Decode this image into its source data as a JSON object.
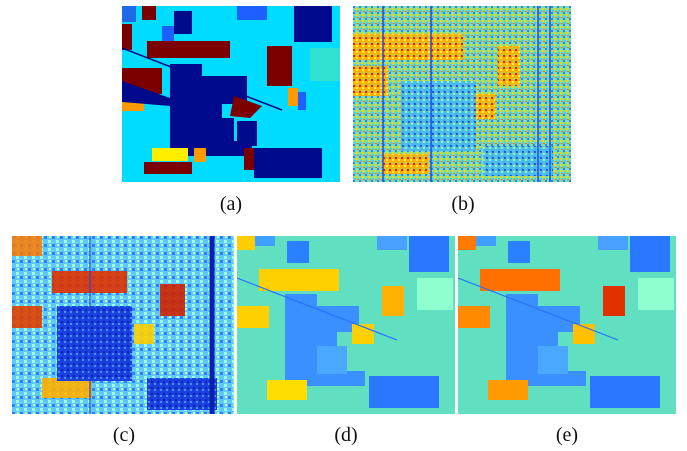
{
  "figure": {
    "panels": [
      {
        "id": "a",
        "caption": "(a)",
        "kind": "ground-truth-class-map"
      },
      {
        "id": "b",
        "caption": "(b)",
        "kind": "noisy-map"
      },
      {
        "id": "c",
        "caption": "(c)",
        "kind": "denoised-map"
      },
      {
        "id": "d",
        "caption": "(d)",
        "kind": "smooth-map"
      },
      {
        "id": "e",
        "caption": "(e)",
        "kind": "smooth-map"
      }
    ],
    "colors": {
      "background_cyan": "#00dcff",
      "dark_blue": "#000a8c",
      "dark_red": "#7d0000",
      "orange": "#ff9a00",
      "yellow": "#ffee00",
      "mid_blue": "#1e5fff",
      "light_teal": "#30e0d0"
    }
  }
}
